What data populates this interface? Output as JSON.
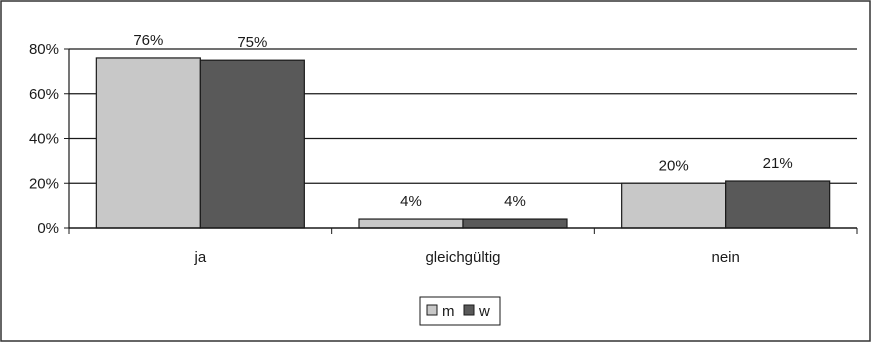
{
  "chart_data": {
    "type": "bar",
    "categories": [
      "ja",
      "gleichgültig",
      "nein"
    ],
    "series": [
      {
        "name": "m",
        "values": [
          76,
          4,
          20
        ],
        "labels": [
          "76%",
          "4%",
          "20%"
        ],
        "color": "#c8c8c8"
      },
      {
        "name": "w",
        "values": [
          75,
          4,
          21
        ],
        "labels": [
          "75%",
          "4%",
          "21%"
        ],
        "color": "#595959"
      }
    ],
    "y_ticks": [
      "0%",
      "20%",
      "40%",
      "60%",
      "80%"
    ],
    "y_tick_values": [
      0,
      20,
      40,
      60,
      80
    ],
    "ylim": [
      0,
      80
    ],
    "grid": true,
    "legend": {
      "position": "bottom-center",
      "entries": [
        "m",
        "w"
      ]
    },
    "background": "#ffffff",
    "border_color": "#333333"
  }
}
